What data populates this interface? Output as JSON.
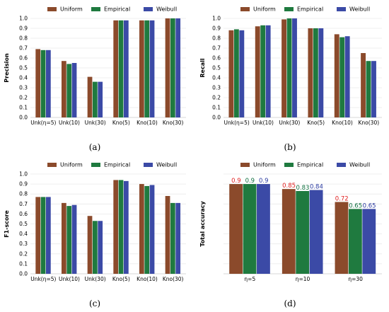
{
  "series_colors": {
    "Uniform": "#8b4a2b",
    "Empirical": "#1f7a3f",
    "Weibull": "#3b4aa6",
    "label_uniform": "#e02020",
    "label_empirical": "#0f6f3f",
    "label_weibull": "#2a3aa0"
  },
  "chart_data": [
    {
      "id": "a",
      "type": "bar",
      "caption": "(a)",
      "xlabel": "",
      "ylabel": "Precision",
      "ylim": [
        0,
        1.0
      ],
      "yticks": [
        "0.0",
        "0.1",
        "0.2",
        "0.3",
        "0.4",
        "0.5",
        "0.6",
        "0.7",
        "0.8",
        "0.9",
        "1.0"
      ],
      "grid": true,
      "legend": "top",
      "categories": [
        "Unk(η=5)",
        "Unk(10)",
        "Unk(30)",
        "Kno(5)",
        "Kno(10)",
        "Kno(30)"
      ],
      "series": [
        {
          "name": "Uniform",
          "values": [
            0.69,
            0.57,
            0.41,
            0.98,
            0.98,
            1.0
          ]
        },
        {
          "name": "Empirical",
          "values": [
            0.68,
            0.54,
            0.36,
            0.98,
            0.98,
            1.0
          ]
        },
        {
          "name": "Weibull",
          "values": [
            0.68,
            0.55,
            0.36,
            0.98,
            0.98,
            1.0
          ]
        }
      ]
    },
    {
      "id": "b",
      "type": "bar",
      "caption": "(b)",
      "xlabel": "",
      "ylabel": "Recall",
      "ylim": [
        0,
        1.0
      ],
      "yticks": [
        "0.0",
        "0.1",
        "0.2",
        "0.3",
        "0.4",
        "0.5",
        "0.6",
        "0.7",
        "0.8",
        "0.9",
        "1.0"
      ],
      "grid": true,
      "legend": "top",
      "categories": [
        "Unk(η=5)",
        "Unk(10)",
        "Unk(30)",
        "Kno(5)",
        "Kno(10)",
        "Kno(30)"
      ],
      "series": [
        {
          "name": "Uniform",
          "values": [
            0.88,
            0.92,
            0.99,
            0.9,
            0.84,
            0.65
          ]
        },
        {
          "name": "Empirical",
          "values": [
            0.89,
            0.93,
            1.0,
            0.9,
            0.81,
            0.57
          ]
        },
        {
          "name": "Weibull",
          "values": [
            0.88,
            0.93,
            1.0,
            0.9,
            0.82,
            0.57
          ]
        }
      ]
    },
    {
      "id": "c",
      "type": "bar",
      "caption": "(c)",
      "xlabel": "",
      "ylabel": "F1-score",
      "ylim": [
        0,
        1.0
      ],
      "yticks": [
        "0.0",
        "0.1",
        "0.2",
        "0.3",
        "0.4",
        "0.5",
        "0.6",
        "0.7",
        "0.8",
        "0.9",
        "1.0"
      ],
      "grid": true,
      "legend": "top",
      "categories": [
        "Unk(η=5)",
        "Unk(10)",
        "Unk(30)",
        "Kno(5)",
        "Kno(10)",
        "Kno(30)"
      ],
      "series": [
        {
          "name": "Uniform",
          "values": [
            0.77,
            0.71,
            0.58,
            0.94,
            0.9,
            0.78
          ]
        },
        {
          "name": "Empirical",
          "values": [
            0.77,
            0.68,
            0.53,
            0.94,
            0.88,
            0.71
          ]
        },
        {
          "name": "Weibull",
          "values": [
            0.77,
            0.69,
            0.53,
            0.93,
            0.89,
            0.71
          ]
        }
      ]
    },
    {
      "id": "d",
      "type": "bar",
      "caption": "(d)",
      "xlabel": "",
      "ylabel": "Total accuracy",
      "ylim": [
        0,
        1.0
      ],
      "yticks": [
        "0.0",
        "0.1",
        "0.2",
        "0.3",
        "0.4",
        "0.5",
        "0.6",
        "0.7",
        "0.8",
        "0.9",
        "1.0"
      ],
      "grid": true,
      "legend": "top",
      "categories": [
        "η=5",
        "η=10",
        "η=30"
      ],
      "series": [
        {
          "name": "Uniform",
          "values": [
            0.9,
            0.85,
            0.72
          ]
        },
        {
          "name": "Empirical",
          "values": [
            0.9,
            0.83,
            0.65
          ]
        },
        {
          "name": "Weibull",
          "values": [
            0.9,
            0.84,
            0.65
          ]
        }
      ],
      "data_labels": [
        [
          "0.9",
          "0.9",
          "0.9"
        ],
        [
          "0.85",
          "0.83",
          "0.84"
        ],
        [
          "0.72",
          "0.65",
          "0.65"
        ]
      ]
    }
  ]
}
